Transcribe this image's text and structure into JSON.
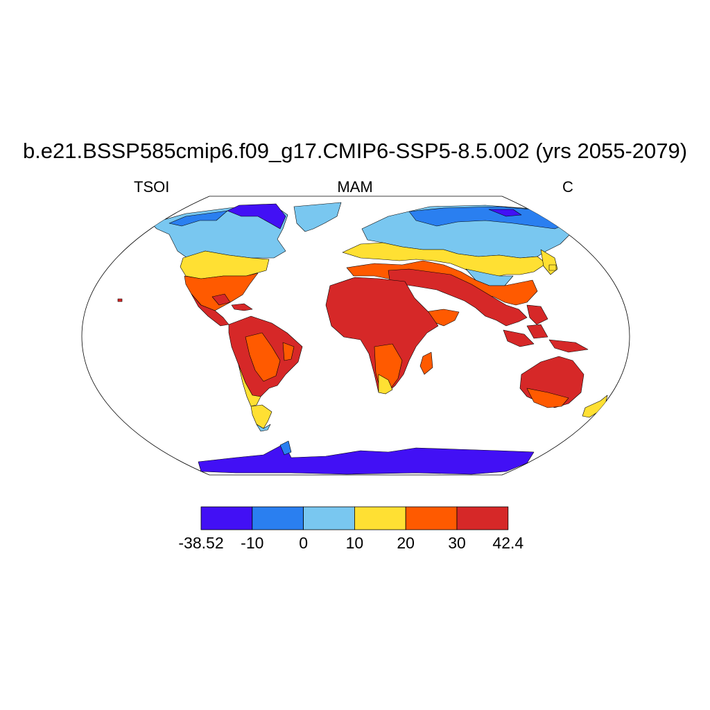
{
  "title": "b.e21.BSSP585cmip6.f09_g17.CMIP6-SSP5-8.5.002 (yrs 2055-2079)",
  "subtitles": {
    "left": "TSOI",
    "center": "MAM",
    "right": "C"
  },
  "colorbar": {
    "labels": [
      "-38.52",
      "-10",
      "0",
      "10",
      "20",
      "30",
      "42.4"
    ],
    "colors": [
      "#4210f5",
      "#2a7ff0",
      "#79c7f0",
      "#ffe033",
      "#ff5a00",
      "#d62828"
    ]
  },
  "palette": {
    "violet": "#4210f5",
    "blue": "#2a7ff0",
    "light_blue": "#79c7f0",
    "yellow": "#ffe033",
    "orange": "#ff5a00",
    "red": "#d62828"
  }
}
